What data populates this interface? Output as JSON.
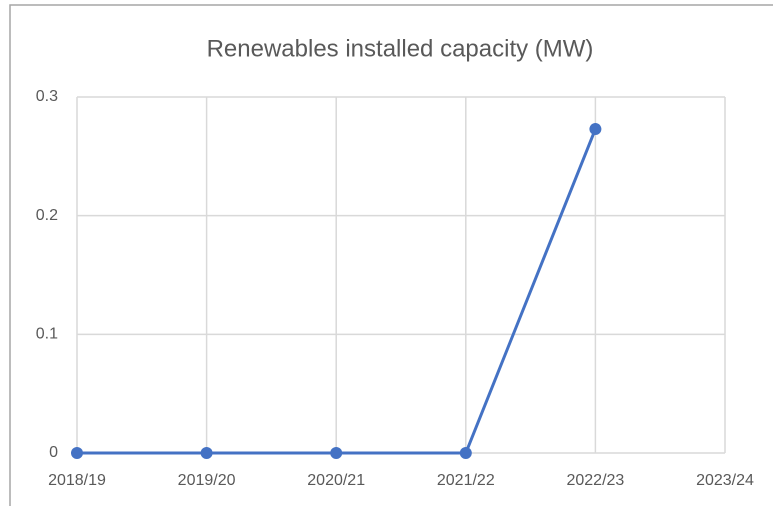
{
  "chart_data": {
    "type": "line",
    "title": "Renewables installed capacity (MW)",
    "categories": [
      "2018/19",
      "2019/20",
      "2020/21",
      "2021/22",
      "2022/23",
      "2023/24"
    ],
    "series": [
      {
        "name": "Renewables installed capacity (MW)",
        "color": "#4472c4",
        "values": [
          0,
          0,
          0,
          0,
          0.273,
          null
        ]
      }
    ],
    "ylim": [
      0,
      0.3
    ],
    "yticks": [
      0,
      0.1,
      0.2,
      0.3
    ],
    "grid": true
  }
}
